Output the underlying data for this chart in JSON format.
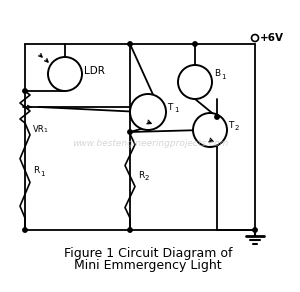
{
  "bg_color": "#ffffff",
  "line_color": "#000000",
  "title_line1": "Figure 1 Circuit Diagram of",
  "title_line2": "Mini Emmergency Light",
  "watermark": "www.bestengineeringprojects.com",
  "watermark_color": "#cccccc",
  "title_fontsize": 9,
  "watermark_fontsize": 6.5,
  "ldr_label": "LDR",
  "vr_label": "VR",
  "r1_label": "R",
  "r2_label": "R",
  "b1_label": "B",
  "t1_label": "T",
  "t2_label": "T",
  "plus6v": "+6V"
}
